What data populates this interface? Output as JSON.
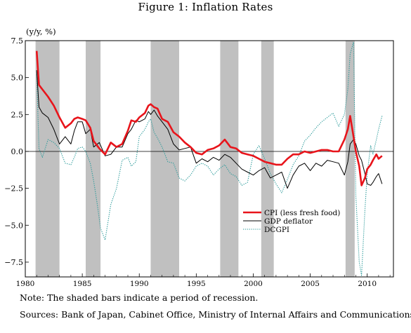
{
  "page": {
    "title": "Figure 1: Inflation Rates",
    "note": "Note: The shaded bars indicate a period of recession.",
    "sources": "Sources: Bank of Japan, Cabinet Office, Ministry of Internal Affairs and Communications."
  },
  "chart_data": {
    "type": "line",
    "ylabel": "(y/y, %)",
    "xlabel": "",
    "xlim": [
      1980,
      2012.3
    ],
    "ylim": [
      -8.5,
      7.5
    ],
    "xticks": [
      1980,
      1985,
      1990,
      1995,
      2000,
      2005,
      2010
    ],
    "xtick_labels": [
      "1980",
      "1985",
      "1990",
      "1995",
      "2000",
      "2005",
      "2010"
    ],
    "yticks": [
      7.5,
      5.0,
      2.5,
      0.0,
      -2.5,
      -5.0,
      -7.5
    ],
    "ytick_labels": [
      "7.5",
      "5.0",
      "2.5",
      "0.0",
      "−2.5",
      "−5.0",
      "−7.5"
    ],
    "zero_line": 0,
    "legend_position": "lower-right",
    "recessions": [
      [
        1980.9,
        1983.0
      ],
      [
        1985.3,
        1986.6
      ],
      [
        1991.0,
        1993.5
      ],
      [
        1997.1,
        1998.7
      ],
      [
        2000.7,
        2001.8
      ],
      [
        2008.1,
        2008.9
      ]
    ],
    "series": [
      {
        "name": "CPI (less fresh food)",
        "color": "#e8141b",
        "style": "thick",
        "x": [
          1981.0,
          1981.2,
          1981.5,
          1982.0,
          1982.5,
          1983.0,
          1983.5,
          1984.0,
          1984.3,
          1984.6,
          1985.0,
          1985.3,
          1985.7,
          1986.0,
          1986.5,
          1987.0,
          1987.5,
          1988.0,
          1988.5,
          1989.0,
          1989.3,
          1989.7,
          1990.0,
          1990.5,
          1990.8,
          1991.0,
          1991.3,
          1991.6,
          1992.0,
          1992.5,
          1993.0,
          1993.5,
          1994.0,
          1994.5,
          1995.0,
          1995.5,
          1996.0,
          1996.5,
          1997.0,
          1997.5,
          1998.0,
          1998.5,
          1999.0,
          1999.5,
          2000.0,
          2000.5,
          2001.0,
          2001.5,
          2002.0,
          2002.5,
          2003.0,
          2003.5,
          2004.0,
          2004.5,
          2005.0,
          2005.5,
          2006.0,
          2006.5,
          2007.0,
          2007.5,
          2008.0,
          2008.3,
          2008.5,
          2008.8,
          2009.0,
          2009.3,
          2009.5,
          2009.8,
          2010.0,
          2010.3,
          2010.5,
          2010.8,
          2011.0,
          2011.3
        ],
        "values": [
          6.8,
          4.5,
          4.2,
          3.7,
          3.1,
          2.3,
          1.6,
          1.9,
          2.2,
          2.3,
          2.2,
          2.1,
          1.6,
          0.7,
          0.2,
          -0.2,
          0.6,
          0.3,
          0.5,
          1.4,
          2.1,
          2.0,
          2.3,
          2.6,
          3.1,
          3.2,
          3.0,
          2.9,
          2.2,
          2.0,
          1.3,
          1.0,
          0.6,
          0.3,
          -0.1,
          -0.2,
          0.1,
          0.2,
          0.4,
          0.8,
          0.3,
          0.2,
          -0.1,
          -0.2,
          -0.3,
          -0.5,
          -0.7,
          -0.8,
          -0.9,
          -0.9,
          -0.5,
          -0.2,
          -0.2,
          0.0,
          -0.1,
          0.0,
          0.1,
          0.1,
          0.0,
          0.0,
          0.8,
          1.5,
          2.4,
          1.0,
          0.0,
          -1.0,
          -2.3,
          -1.8,
          -1.2,
          -0.9,
          -0.6,
          -0.2,
          -0.5,
          -0.3
        ]
      },
      {
        "name": "GDP deflator",
        "color": "#000000",
        "style": "solid",
        "x": [
          1981.0,
          1981.2,
          1981.5,
          1982.0,
          1982.5,
          1983.0,
          1983.5,
          1984.0,
          1984.3,
          1984.6,
          1985.0,
          1985.3,
          1985.7,
          1986.0,
          1986.5,
          1987.0,
          1987.5,
          1988.0,
          1988.5,
          1989.0,
          1989.3,
          1989.7,
          1990.0,
          1990.5,
          1990.8,
          1991.0,
          1991.3,
          1991.6,
          1992.0,
          1992.5,
          1993.0,
          1993.5,
          1994.0,
          1994.5,
          1995.0,
          1995.5,
          1996.0,
          1996.5,
          1997.0,
          1997.5,
          1998.0,
          1998.5,
          1999.0,
          1999.5,
          2000.0,
          2000.5,
          2001.0,
          2001.5,
          2002.0,
          2002.5,
          2003.0,
          2003.5,
          2004.0,
          2004.5,
          2005.0,
          2005.5,
          2006.0,
          2006.5,
          2007.0,
          2007.5,
          2008.0,
          2008.3,
          2008.5,
          2008.8,
          2009.0,
          2009.3,
          2009.5,
          2009.8,
          2010.0,
          2010.3,
          2010.5,
          2010.8,
          2011.0,
          2011.3
        ],
        "values": [
          5.5,
          3.0,
          2.6,
          2.3,
          1.5,
          0.5,
          1.0,
          0.5,
          1.4,
          2.0,
          2.0,
          1.2,
          1.5,
          0.3,
          0.6,
          -0.3,
          -0.2,
          0.3,
          0.3,
          1.2,
          1.5,
          2.1,
          2.0,
          2.2,
          2.7,
          2.5,
          2.8,
          2.4,
          2.0,
          1.5,
          0.5,
          0.1,
          0.2,
          0.3,
          -0.8,
          -0.5,
          -0.7,
          -0.4,
          -0.6,
          -0.2,
          -0.4,
          -0.8,
          -1.2,
          -1.4,
          -1.6,
          -1.3,
          -1.1,
          -1.8,
          -1.6,
          -1.4,
          -2.5,
          -1.6,
          -1.0,
          -0.8,
          -1.3,
          -0.8,
          -1.0,
          -0.6,
          -0.7,
          -0.8,
          -1.6,
          -0.7,
          0.5,
          0.8,
          0.5,
          -0.3,
          -0.6,
          -1.5,
          -2.2,
          -2.3,
          -2.1,
          -1.7,
          -1.5,
          -2.2
        ]
      },
      {
        "name": "DCGPI",
        "color": "#2a9a9a",
        "style": "dotted",
        "x": [
          1981.0,
          1981.2,
          1981.5,
          1982.0,
          1982.5,
          1983.0,
          1983.5,
          1984.0,
          1984.3,
          1984.6,
          1985.0,
          1985.3,
          1985.7,
          1986.0,
          1986.3,
          1986.6,
          1987.0,
          1987.5,
          1988.0,
          1988.5,
          1989.0,
          1989.3,
          1989.7,
          1990.0,
          1990.5,
          1990.8,
          1991.0,
          1991.3,
          1991.6,
          1992.0,
          1992.5,
          1993.0,
          1993.5,
          1994.0,
          1994.5,
          1995.0,
          1995.5,
          1996.0,
          1996.5,
          1997.0,
          1997.5,
          1998.0,
          1998.5,
          1999.0,
          1999.5,
          2000.0,
          2000.5,
          2001.0,
          2001.5,
          2002.0,
          2002.5,
          2003.0,
          2003.5,
          2004.0,
          2004.5,
          2005.0,
          2005.5,
          2006.0,
          2006.5,
          2007.0,
          2007.5,
          2008.0,
          2008.3,
          2008.5,
          2008.8,
          2009.0,
          2009.3,
          2009.5,
          2009.8,
          2010.0,
          2010.3,
          2010.5,
          2010.8,
          2011.0,
          2011.3
        ],
        "values": [
          5.2,
          0.2,
          -0.4,
          0.8,
          0.6,
          0.2,
          -0.8,
          -0.9,
          -0.4,
          0.2,
          0.3,
          0.0,
          -0.8,
          -2.0,
          -3.5,
          -5.2,
          -6.0,
          -3.6,
          -2.5,
          -0.6,
          -0.4,
          -1.0,
          -0.7,
          1.0,
          1.5,
          2.0,
          2.2,
          1.3,
          0.9,
          0.3,
          -0.7,
          -0.8,
          -1.8,
          -2.0,
          -1.6,
          -1.0,
          -0.8,
          -1.0,
          -1.6,
          -1.2,
          -0.9,
          -1.5,
          -1.7,
          -2.3,
          -2.1,
          -0.2,
          0.4,
          -0.5,
          -1.5,
          -2.2,
          -2.8,
          -1.9,
          -0.9,
          -0.3,
          0.7,
          1.1,
          1.6,
          2.0,
          2.3,
          2.6,
          1.7,
          2.5,
          4.2,
          6.6,
          7.4,
          -3.0,
          -7.5,
          -8.4,
          -4.0,
          -1.5,
          0.4,
          -0.2,
          0.8,
          1.5,
          2.4
        ]
      }
    ]
  }
}
